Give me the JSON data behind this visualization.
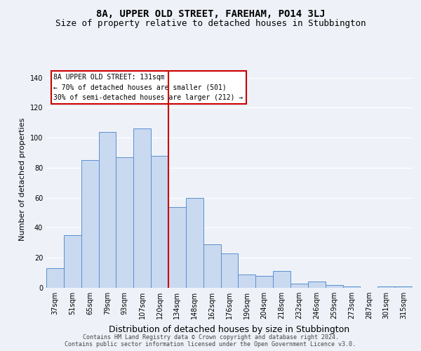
{
  "title": "8A, UPPER OLD STREET, FAREHAM, PO14 3LJ",
  "subtitle": "Size of property relative to detached houses in Stubbington",
  "xlabel": "Distribution of detached houses by size in Stubbington",
  "ylabel": "Number of detached properties",
  "categories": [
    "37sqm",
    "51sqm",
    "65sqm",
    "79sqm",
    "93sqm",
    "107sqm",
    "120sqm",
    "134sqm",
    "148sqm",
    "162sqm",
    "176sqm",
    "190sqm",
    "204sqm",
    "218sqm",
    "232sqm",
    "246sqm",
    "259sqm",
    "273sqm",
    "287sqm",
    "301sqm",
    "315sqm"
  ],
  "values": [
    13,
    35,
    85,
    104,
    87,
    106,
    88,
    54,
    60,
    29,
    23,
    9,
    8,
    11,
    3,
    4,
    2,
    1,
    0,
    1,
    1
  ],
  "bar_color": "#c9d9f0",
  "bar_edge_color": "#5b8fcf",
  "vline_x_index": 6.5,
  "vline_color": "#cc0000",
  "ylim": [
    0,
    145
  ],
  "yticks": [
    0,
    20,
    40,
    60,
    80,
    100,
    120,
    140
  ],
  "annotation_title": "8A UPPER OLD STREET: 131sqm",
  "annotation_line1": "← 70% of detached houses are smaller (501)",
  "annotation_line2": "30% of semi-detached houses are larger (212) →",
  "annotation_box_color": "#ffffff",
  "annotation_box_edge_color": "#cc0000",
  "footnote1": "Contains HM Land Registry data © Crown copyright and database right 2024.",
  "footnote2": "Contains public sector information licensed under the Open Government Licence v3.0.",
  "background_color": "#eef2f8",
  "grid_color": "#ffffff",
  "title_fontsize": 10,
  "subtitle_fontsize": 9,
  "xlabel_fontsize": 9,
  "ylabel_fontsize": 8,
  "tick_fontsize": 7,
  "annotation_fontsize": 7,
  "footnote_fontsize": 6
}
